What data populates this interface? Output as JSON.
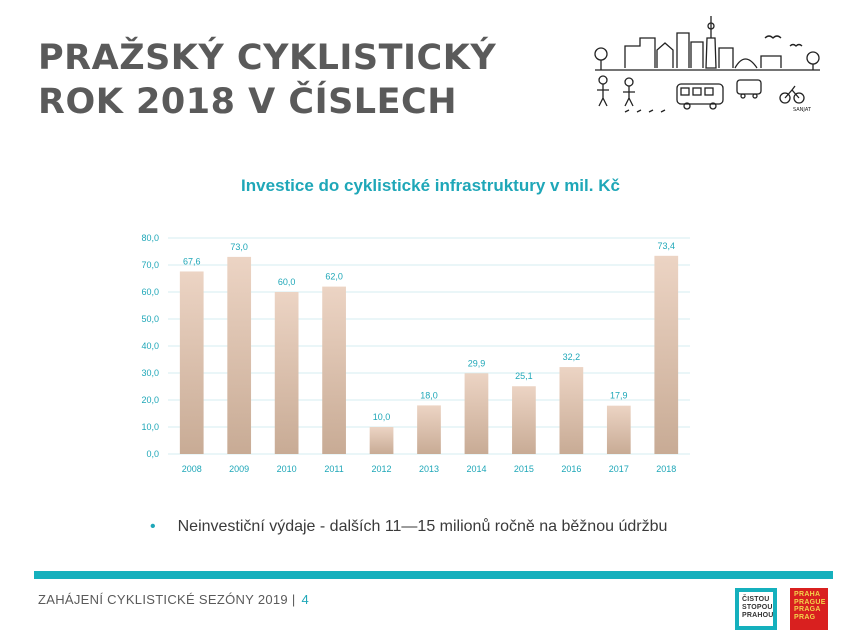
{
  "slide": {
    "title_line1": "PRAŽSKÝ CYKLISTICKÝ",
    "title_line2": "ROK 2018 V ČÍSLECH",
    "bullet": "Neinvestiční výdaje - dalších 11—15 milionů ročně na běžnou údržbu",
    "footer_text": "ZAHÁJENÍ CYKLISTICKÉ SEZÓNY 2019 |",
    "page_number": "4"
  },
  "logos": {
    "cisto_lines": [
      "ČISTOU",
      "STOPOU",
      "PRAHOU"
    ],
    "praha_lines": [
      "PRAHA",
      "PRAGUE",
      "PRAGA",
      "PRAG"
    ],
    "illustration_label": "SANJAT"
  },
  "colors": {
    "accent": "#15b0bd",
    "title": "#5a5a5a",
    "bar_top": "#ecd4c4",
    "bar_bottom": "#c8ab95",
    "label": "#1fa7b8",
    "grid": "#d6eef1"
  },
  "chart_data": {
    "type": "bar",
    "title": "Investice do cyklistické infrastruktury v mil. Kč",
    "categories": [
      "2008",
      "2009",
      "2010",
      "2011",
      "2012",
      "2013",
      "2014",
      "2015",
      "2016",
      "2017",
      "2018"
    ],
    "values": [
      67.6,
      73.0,
      60.0,
      62.0,
      10.0,
      18.0,
      29.9,
      25.1,
      32.2,
      17.9,
      73.4
    ],
    "value_labels": [
      "67,6",
      "73,0",
      "60,0",
      "62,0",
      "10,0",
      "18,0",
      "29,9",
      "25,1",
      "32,2",
      "17,9",
      "73,4"
    ],
    "ylim": [
      0,
      80
    ],
    "yticks": [
      "0,0",
      "10,0",
      "20,0",
      "30,0",
      "40,0",
      "50,0",
      "60,0",
      "70,0",
      "80,0"
    ],
    "grid": true,
    "legend": "none"
  }
}
